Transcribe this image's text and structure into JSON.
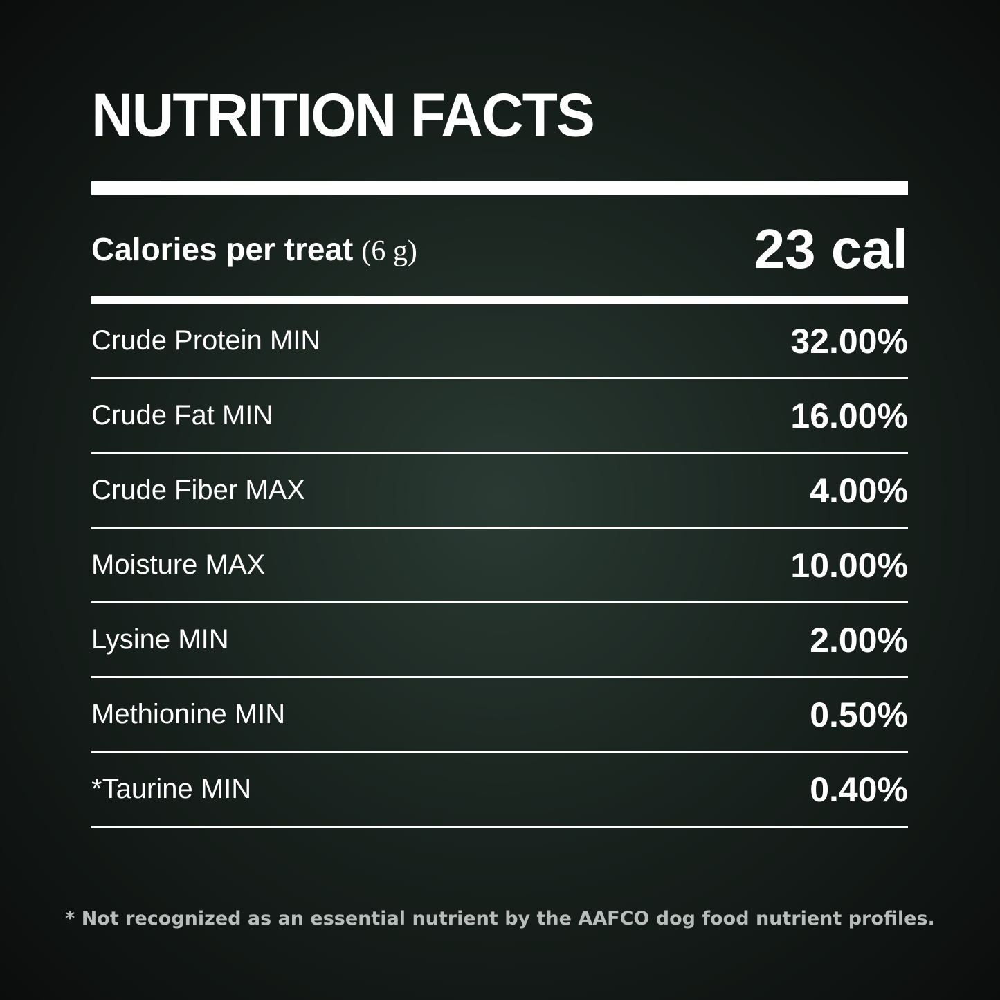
{
  "header": {
    "title": "NUTRITION FACTS"
  },
  "calories": {
    "label": "Calories per treat",
    "serving": "(6 g)",
    "value": "23 cal"
  },
  "table": {
    "rows": [
      [
        "Crude Protein MIN",
        "32.00%"
      ],
      [
        "Crude Fat MIN",
        "16.00%"
      ],
      [
        "Crude Fiber MAX",
        "4.00%"
      ],
      [
        "Moisture MAX",
        "10.00%"
      ],
      [
        "Lysine MIN",
        "2.00%"
      ],
      [
        "Methionine MIN",
        "0.50%"
      ],
      [
        "*Taurine MIN",
        "0.40%"
      ]
    ]
  },
  "footnote": "* Not recognized as an essential nutrient by the AAFCO dog food nutrient profiles."
}
